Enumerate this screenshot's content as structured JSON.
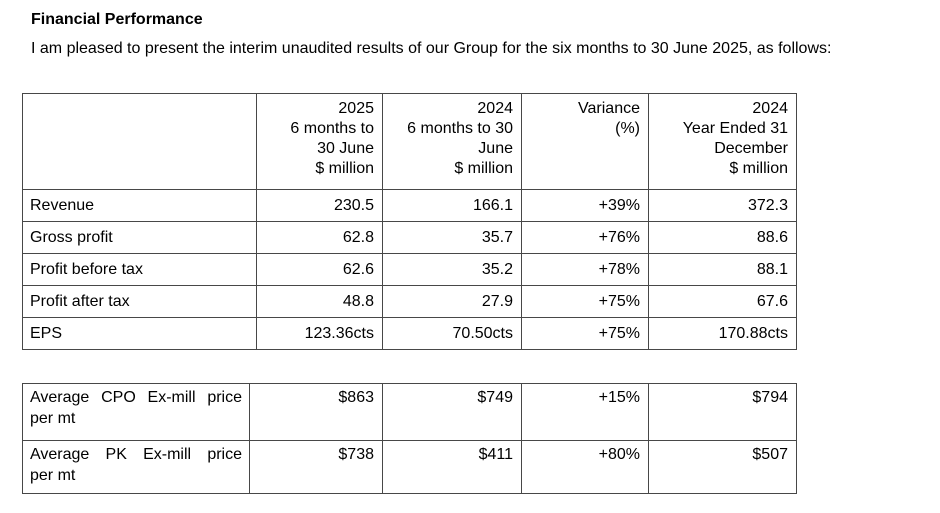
{
  "page": {
    "heading": "Financial Performance",
    "intro": "I am pleased to present the interim unaudited results of our Group for the six months to 30 June 2025, as follows:"
  },
  "results_table": {
    "column_headers": [
      "",
      "2025\n6 months to\n30 June\n$ million",
      "2024\n6 months to 30\nJune\n$ million",
      "Variance\n(%)",
      "2024\nYear Ended 31\nDecember\n$ million"
    ],
    "rows": [
      {
        "label": "Revenue",
        "values": [
          "230.5",
          "166.1",
          "+39%",
          "372.3"
        ]
      },
      {
        "label": "Gross profit",
        "values": [
          "62.8",
          "35.7",
          "+76%",
          "88.6"
        ]
      },
      {
        "label": "Profit before tax",
        "values": [
          "62.6",
          "35.2",
          "+78%",
          "88.1"
        ]
      },
      {
        "label": "Profit after tax",
        "values": [
          "48.8",
          "27.9",
          "+75%",
          "67.6"
        ]
      },
      {
        "label": "EPS",
        "values": [
          "123.36cts",
          "70.50cts",
          "+75%",
          "170.88cts"
        ]
      }
    ]
  },
  "price_table": {
    "rows": [
      {
        "label_lines": [
          "Average CPO Ex-mill price",
          "per mt"
        ],
        "values": [
          "$863",
          "$749",
          "+15%",
          "$794"
        ]
      },
      {
        "label_lines": [
          "Average PK Ex-mill price",
          "per mt"
        ],
        "values": [
          "$738",
          "$411",
          "+80%",
          "$507"
        ]
      }
    ]
  }
}
